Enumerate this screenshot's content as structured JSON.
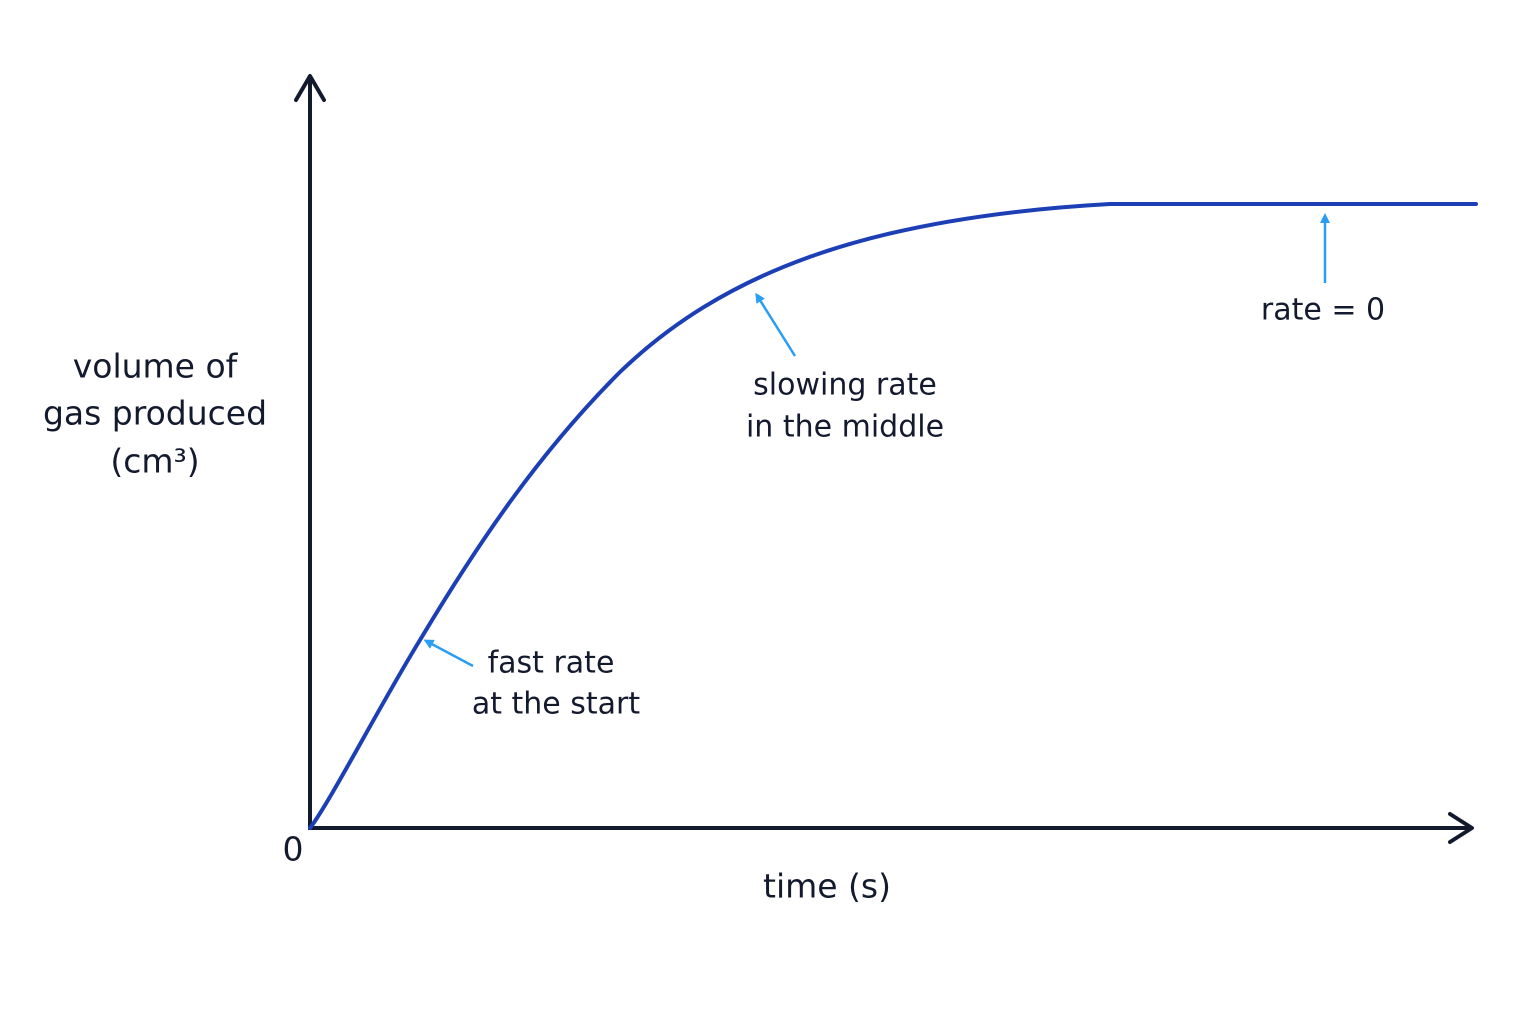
{
  "axes": {
    "y_label": [
      "volume of",
      "gas produced",
      "(cm³)"
    ],
    "x_label": "time (s)",
    "origin": "0"
  },
  "annotations": [
    {
      "lines": [
        "fast rate",
        "at the start"
      ]
    },
    {
      "lines": [
        "slowing rate",
        "in the middle"
      ]
    },
    {
      "lines": [
        "rate = 0"
      ]
    }
  ]
}
